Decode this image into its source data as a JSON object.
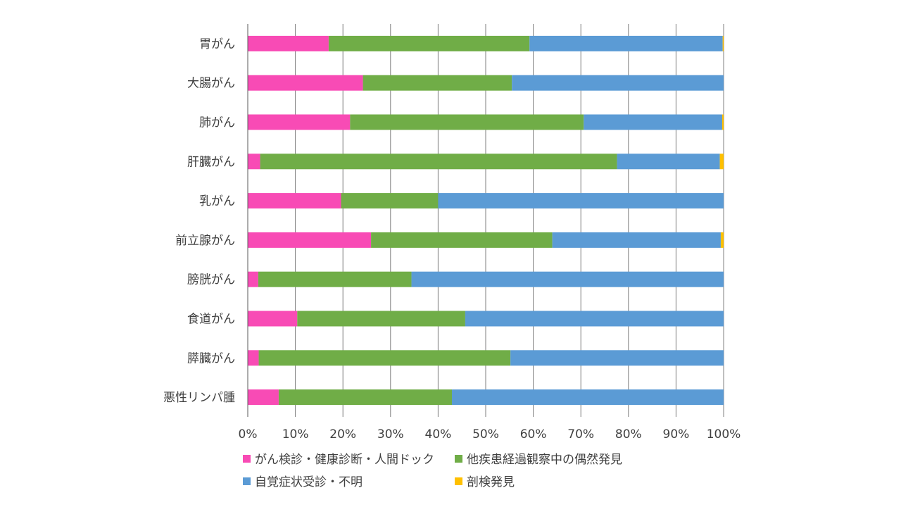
{
  "chart_data": {
    "type": "bar",
    "orientation": "horizontal",
    "stacked": "percent",
    "title": "",
    "xlabel": "",
    "ylabel": "",
    "xlim": [
      0,
      100
    ],
    "x_ticks": [
      "0%",
      "10%",
      "20%",
      "30%",
      "40%",
      "50%",
      "60%",
      "70%",
      "80%",
      "90%",
      "100%"
    ],
    "grid": "vertical",
    "legend_position": "bottom",
    "categories": [
      "胃がん",
      "大腸がん",
      "肺がん",
      "肝臓がん",
      "乳がん",
      "前立腺がん",
      "膀胱がん",
      "食道がん",
      "膵臓がん",
      "悪性リンパ腫"
    ],
    "series": [
      {
        "name": "がん検診・健康診断・人間ドック",
        "color": "#f84bb5",
        "values": [
          17,
          24.2,
          21.5,
          2.6,
          19.6,
          25.9,
          2.2,
          10.4,
          2.3,
          6.5
        ]
      },
      {
        "name": "他疾患経過観察中の偶然発見",
        "color": "#70ad47",
        "values": [
          42.2,
          31.3,
          49.1,
          75,
          20.4,
          38.1,
          32.2,
          35.3,
          52.9,
          36.4
        ]
      },
      {
        "name": "自覚症状受診・不明",
        "color": "#5b9bd5",
        "values": [
          40.6,
          44.5,
          29.1,
          21.6,
          60,
          35.4,
          65.6,
          54.3,
          44.8,
          57.1
        ]
      },
      {
        "name": "剖検発見",
        "color": "#ffc000",
        "values": [
          0.2,
          0,
          0.3,
          0.8,
          0,
          0.6,
          0,
          0,
          0,
          0
        ]
      }
    ]
  }
}
